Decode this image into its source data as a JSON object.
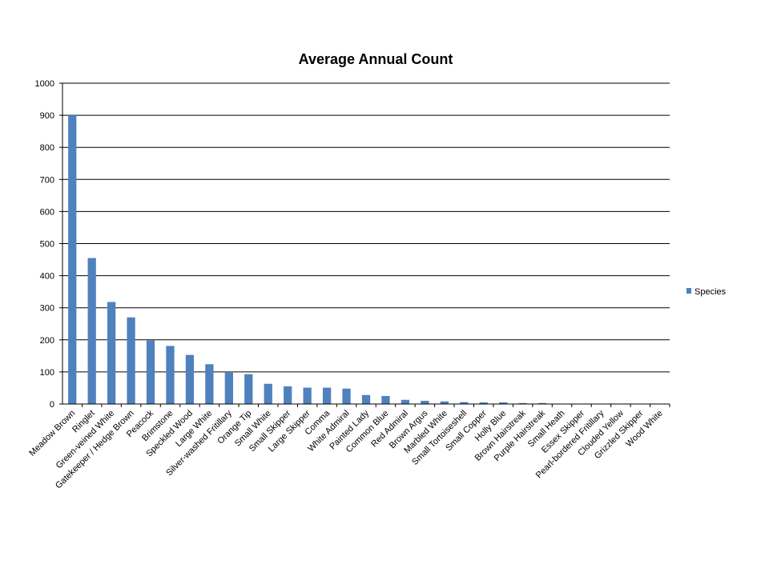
{
  "chart_data": {
    "type": "bar",
    "title": "Average Annual Count",
    "xlabel": "",
    "ylabel": "",
    "ylim": [
      0,
      1000
    ],
    "yticks": [
      0,
      100,
      200,
      300,
      400,
      500,
      600,
      700,
      800,
      900,
      1000
    ],
    "grid": true,
    "legend_position": "right",
    "bar_color": "#4F81BD",
    "categories": [
      "Meadow Brown",
      "Ringlet",
      "Green-veined White",
      "Gatekeeper / Hedge Brown",
      "Peacock",
      "Brimstone",
      "Speckled Wood",
      "Large White",
      "Silver-washed Fritillary",
      "Orange Tip",
      "Small White",
      "Small Skipper",
      "Large Skipper",
      "Comma",
      "White Admiral",
      "Painted Lady",
      "Common Blue",
      "Red Admiral",
      "Brown Argus",
      "Marbled White",
      "Small Tortoiseshell",
      "Small Copper",
      "Holly Blue",
      "Brown Hairstreak",
      "Purple Hairstreak",
      "Small Heath",
      "Essex Skipper",
      "Pearl-bordered Fritillary",
      "Clouded Yellow",
      "Grizzled Skipper",
      "Wood White"
    ],
    "series": [
      {
        "name": "Species",
        "values": [
          900,
          455,
          318,
          270,
          198,
          181,
          153,
          124,
          100,
          93,
          63,
          55,
          51,
          51,
          48,
          28,
          25,
          13,
          10,
          8,
          6,
          5,
          5,
          3,
          3,
          0.5,
          0.5,
          0.5,
          0.5,
          0.5,
          0.5
        ]
      }
    ]
  }
}
